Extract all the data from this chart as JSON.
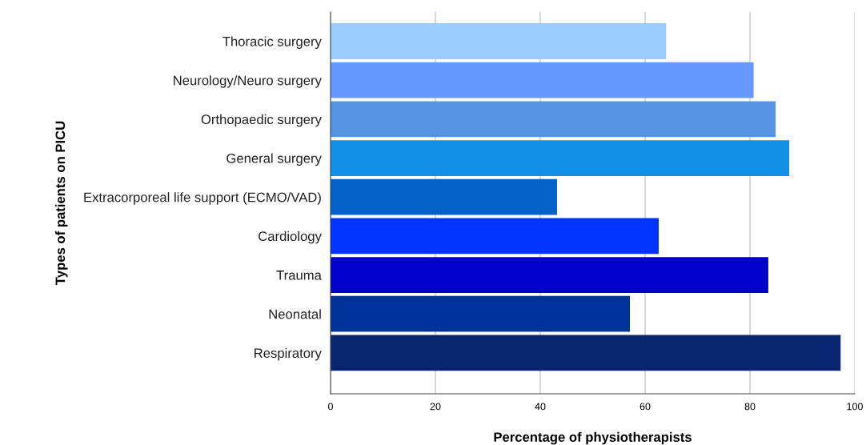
{
  "chart_data": {
    "type": "bar",
    "orientation": "horizontal",
    "xlabel": "Percentage of physiotherapists",
    "ylabel": "Types of patients on PICU",
    "categories": [
      "Thoracic surgery",
      "Neurology/Neuro surgery",
      "Orthopaedic surgery",
      "General surgery",
      "Extracorporeal life support (ECMO/VAD)",
      "Cardiology",
      "Trauma",
      "Neonatal",
      "Respiratory"
    ],
    "values": [
      64.0,
      80.7,
      84.9,
      87.5,
      43.2,
      62.6,
      83.5,
      57.1,
      97.3
    ],
    "colors": [
      "#99ccff",
      "#6699ff",
      "#5594e4",
      "#1290e6",
      "#0062c8",
      "#0033ff",
      "#0000cc",
      "#003399",
      "#0a2670"
    ],
    "xlim": [
      0,
      100
    ],
    "xticks": [
      0,
      20,
      40,
      60,
      80,
      100
    ],
    "grid": "x"
  }
}
